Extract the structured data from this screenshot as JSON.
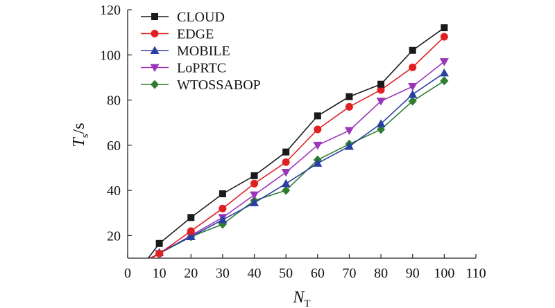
{
  "chart_data": {
    "type": "line",
    "xlabel": {
      "main": "N",
      "sub": "T"
    },
    "ylabel": {
      "main": "T",
      "sub": "s",
      "unit": "/s"
    },
    "xlim": [
      0,
      110
    ],
    "ylim": [
      10,
      120
    ],
    "xticks": [
      0,
      10,
      20,
      30,
      40,
      50,
      60,
      70,
      80,
      90,
      100,
      110
    ],
    "yticks": [
      20,
      40,
      60,
      80,
      100,
      120
    ],
    "grid": false,
    "legend_position": "top-left",
    "x": [
      10,
      20,
      30,
      40,
      50,
      60,
      70,
      80,
      90,
      100
    ],
    "series": [
      {
        "name": "CLOUD",
        "color": "#1a1a1a",
        "marker": "square",
        "line_start": [
          6.5,
          10
        ],
        "values": [
          16.5,
          28,
          38.5,
          46.5,
          57,
          73,
          81.5,
          87,
          102,
          112
        ]
      },
      {
        "name": "EDGE",
        "color": "#e02020",
        "marker": "circle",
        "line_start": [
          7,
          10
        ],
        "values": [
          12,
          22,
          32,
          43,
          52.5,
          67,
          77,
          84.5,
          94.5,
          108
        ]
      },
      {
        "name": "MOBILE",
        "color": "#2a3fa0",
        "marker": "triangle-up",
        "line_start": [
          7.5,
          10
        ],
        "values": [
          12.5,
          19.5,
          27,
          34.5,
          43,
          52,
          59.5,
          69.5,
          82.5,
          92
        ]
      },
      {
        "name": "LoPRTC",
        "color": "#9b34b8",
        "marker": "triangle-down",
        "line_start": [
          7.5,
          10
        ],
        "values": [
          12,
          20,
          28,
          38,
          48,
          60,
          66.5,
          79.5,
          86,
          97
        ]
      },
      {
        "name": "WTOSSABOP",
        "color": "#2e7d32",
        "marker": "diamond",
        "line_start": [
          7.5,
          10
        ],
        "values": [
          12,
          19.5,
          25,
          35.5,
          40,
          53.5,
          60.5,
          67,
          79.5,
          88.5
        ]
      }
    ]
  }
}
